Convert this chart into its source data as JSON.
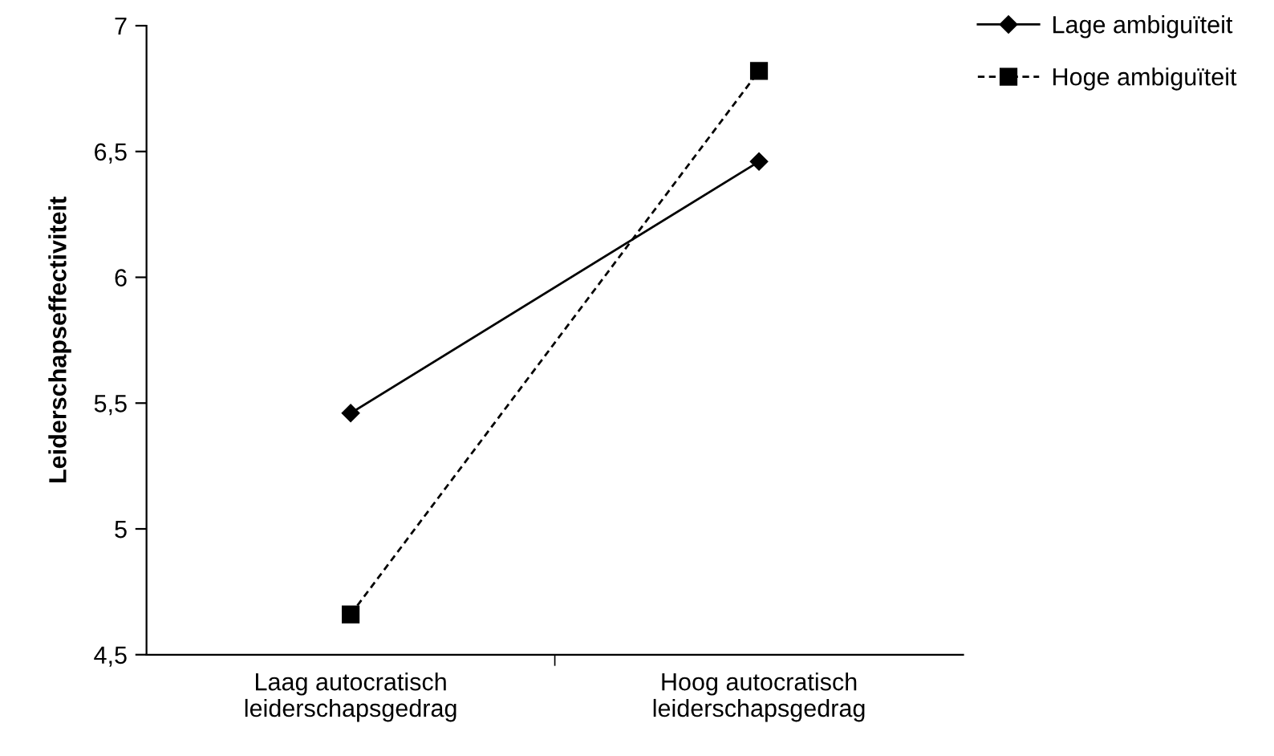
{
  "chart_data": {
    "type": "line",
    "ylabel": "Leiderschapseffectiviteit",
    "categories": [
      "Laag autocratisch\nleiderschapsgedrag",
      "Hoog autocratisch\nleiderschapsgedrag"
    ],
    "series": [
      {
        "name": "Lage ambiguïteit",
        "color": "#000000",
        "values": [
          5.46,
          6.46
        ],
        "marker": "diamond",
        "line_style": "solid"
      },
      {
        "name": "Hoge ambiguïteit",
        "color": "#000000",
        "values": [
          4.66,
          6.82
        ],
        "marker": "square",
        "line_style": "dashed"
      }
    ],
    "ylim": [
      4.5,
      7
    ],
    "yticks": [
      {
        "value": 4.5,
        "label": "4,5"
      },
      5,
      {
        "value": 5.5,
        "label": "5,5"
      },
      6,
      {
        "value": 6.5,
        "label": "6,5"
      },
      7
    ],
    "grid": false,
    "legend": "top right"
  }
}
